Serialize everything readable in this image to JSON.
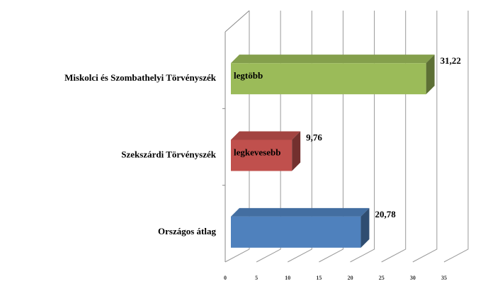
{
  "chart_data": {
    "type": "bar3d",
    "categories": [
      "Miskolci és Szombathelyi Törvényszék",
      "Szekszárdi Törvényszék",
      "Országos átlag"
    ],
    "values": [
      31.22,
      9.76,
      20.78
    ],
    "value_labels": [
      "31,22",
      "9,76",
      "20,78"
    ],
    "bar_labels": [
      "legtöbb",
      "legkevesebb",
      null
    ],
    "colors": [
      "#9bbb59",
      "#c0504d",
      "#4f81bd"
    ],
    "xlim": [
      0,
      35
    ],
    "xticks": [
      0,
      5,
      10,
      15,
      20,
      25,
      30,
      35
    ],
    "grid": true
  }
}
